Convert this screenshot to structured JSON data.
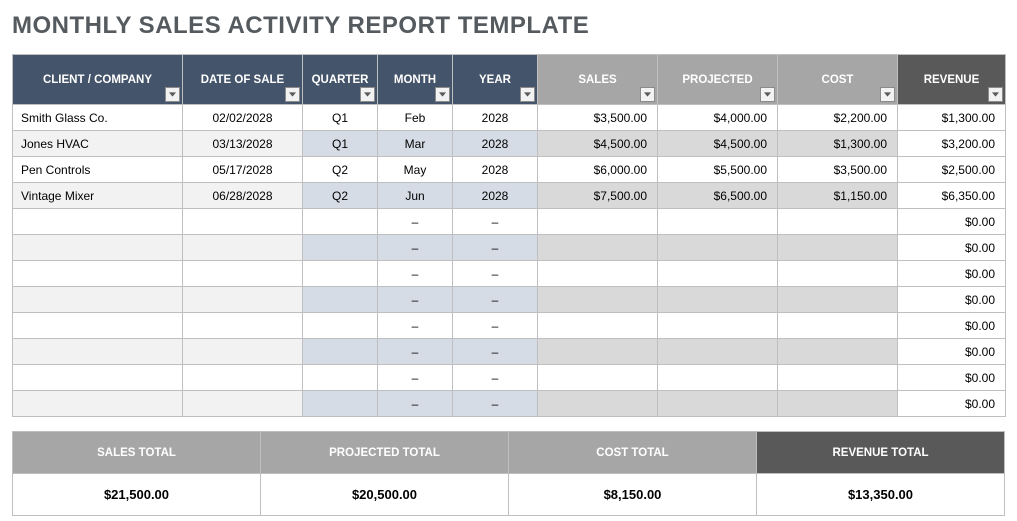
{
  "title": "MONTHLY SALES ACTIVITY REPORT TEMPLATE",
  "columns": [
    {
      "label": "CLIENT / COMPANY",
      "width": 170,
      "hclass": "hdr-dark"
    },
    {
      "label": "DATE OF SALE",
      "width": 120,
      "hclass": "hdr-dark"
    },
    {
      "label": "QUARTER",
      "width": 75,
      "hclass": "hdr-dark"
    },
    {
      "label": "MONTH",
      "width": 75,
      "hclass": "hdr-dark"
    },
    {
      "label": "YEAR",
      "width": 85,
      "hclass": "hdr-dark"
    },
    {
      "label": "SALES",
      "width": 120,
      "hclass": "hdr-gray"
    },
    {
      "label": "PROJECTED",
      "width": 120,
      "hclass": "hdr-gray"
    },
    {
      "label": "COST",
      "width": 120,
      "hclass": "hdr-gray"
    },
    {
      "label": "REVENUE",
      "width": 108,
      "hclass": "hdr-drk2"
    }
  ],
  "rows": [
    {
      "client": "Smith Glass Co.",
      "date": "02/02/2028",
      "quarter": "Q1",
      "month": "Feb",
      "year": "2028",
      "sales": "$3,500.00",
      "projected": "$4,000.00",
      "cost": "$2,200.00",
      "revenue": "$1,300.00"
    },
    {
      "client": "Jones HVAC",
      "date": "03/13/2028",
      "quarter": "Q1",
      "month": "Mar",
      "year": "2028",
      "sales": "$4,500.00",
      "projected": "$4,500.00",
      "cost": "$1,300.00",
      "revenue": "$3,200.00"
    },
    {
      "client": "Pen Controls",
      "date": "05/17/2028",
      "quarter": "Q2",
      "month": "May",
      "year": "2028",
      "sales": "$6,000.00",
      "projected": "$5,500.00",
      "cost": "$3,500.00",
      "revenue": "$2,500.00"
    },
    {
      "client": "Vintage Mixer",
      "date": "06/28/2028",
      "quarter": "Q2",
      "month": "Jun",
      "year": "2028",
      "sales": "$7,500.00",
      "projected": "$6,500.00",
      "cost": "$1,150.00",
      "revenue": "$6,350.00"
    },
    {
      "client": "",
      "date": "",
      "quarter": "",
      "month": "–",
      "year": "–",
      "sales": "",
      "projected": "",
      "cost": "",
      "revenue": "$0.00"
    },
    {
      "client": "",
      "date": "",
      "quarter": "",
      "month": "–",
      "year": "–",
      "sales": "",
      "projected": "",
      "cost": "",
      "revenue": "$0.00"
    },
    {
      "client": "",
      "date": "",
      "quarter": "",
      "month": "–",
      "year": "–",
      "sales": "",
      "projected": "",
      "cost": "",
      "revenue": "$0.00"
    },
    {
      "client": "",
      "date": "",
      "quarter": "",
      "month": "–",
      "year": "–",
      "sales": "",
      "projected": "",
      "cost": "",
      "revenue": "$0.00"
    },
    {
      "client": "",
      "date": "",
      "quarter": "",
      "month": "–",
      "year": "–",
      "sales": "",
      "projected": "",
      "cost": "",
      "revenue": "$0.00"
    },
    {
      "client": "",
      "date": "",
      "quarter": "",
      "month": "–",
      "year": "–",
      "sales": "",
      "projected": "",
      "cost": "",
      "revenue": "$0.00"
    },
    {
      "client": "",
      "date": "",
      "quarter": "",
      "month": "–",
      "year": "–",
      "sales": "",
      "projected": "",
      "cost": "",
      "revenue": "$0.00"
    },
    {
      "client": "",
      "date": "",
      "quarter": "",
      "month": "–",
      "year": "–",
      "sales": "",
      "projected": "",
      "cost": "",
      "revenue": "$0.00"
    }
  ],
  "totals": {
    "headers": [
      {
        "label": "SALES TOTAL",
        "hclass": "tot-gray"
      },
      {
        "label": "PROJECTED TOTAL",
        "hclass": "tot-gray"
      },
      {
        "label": "COST TOTAL",
        "hclass": "tot-gray"
      },
      {
        "label": "REVENUE TOTAL",
        "hclass": "tot-dark"
      }
    ],
    "values": [
      "$21,500.00",
      "$20,500.00",
      "$8,150.00",
      "$13,350.00"
    ]
  }
}
